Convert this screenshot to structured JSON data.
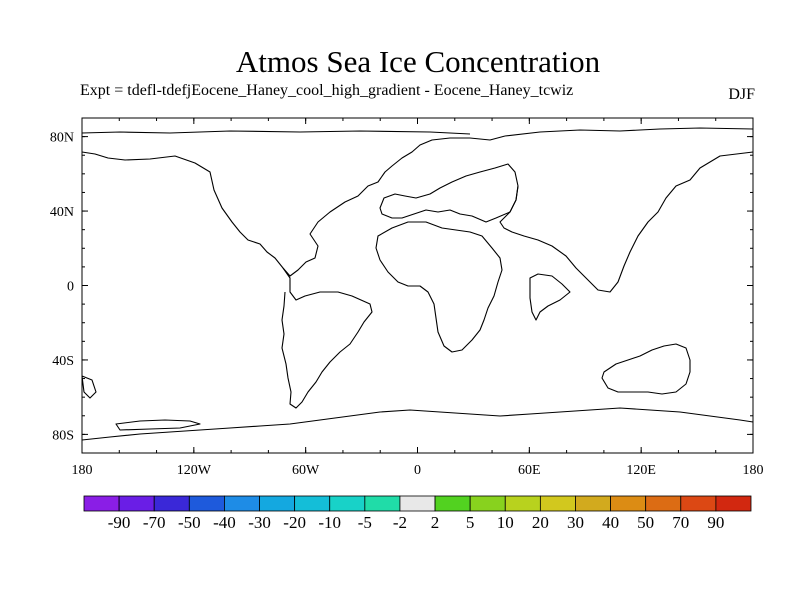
{
  "title": "Atmos Sea Ice Concentration",
  "subtitle": "Expt = tdefl-tdefjEocene_Haney_cool_high_gradient - Eocene_Haney_tcwiz",
  "season": "DJF",
  "map": {
    "lon_range": [
      -180,
      180
    ],
    "lat_range": [
      -90,
      90
    ],
    "x_tick_labels": [
      "180",
      "120W",
      "60W",
      "0",
      "60E",
      "120E",
      "180"
    ],
    "x_tick_values": [
      -180,
      -120,
      -60,
      0,
      60,
      120,
      180
    ],
    "y_tick_labels": [
      "80N",
      "40N",
      "0",
      "40S",
      "80S"
    ],
    "y_tick_values": [
      80,
      40,
      0,
      -40,
      -80
    ]
  },
  "colorbar": {
    "colors": [
      "#8a1ee6",
      "#6a1ee6",
      "#3a28d8",
      "#1e5adc",
      "#1e8ce6",
      "#14a8e0",
      "#14bed8",
      "#18d2c8",
      "#20dca8",
      "#e8e8e8",
      "#52d220",
      "#88d21e",
      "#b8d21e",
      "#d2c81e",
      "#d2aa1e",
      "#dc8c14",
      "#dc6c14",
      "#dc4814",
      "#d22810"
    ],
    "labels": [
      "-90",
      "-70",
      "-50",
      "-40",
      "-30",
      "-20",
      "-10",
      "-5",
      "-2",
      "2",
      "5",
      "10",
      "20",
      "30",
      "40",
      "50",
      "70",
      "90"
    ]
  }
}
